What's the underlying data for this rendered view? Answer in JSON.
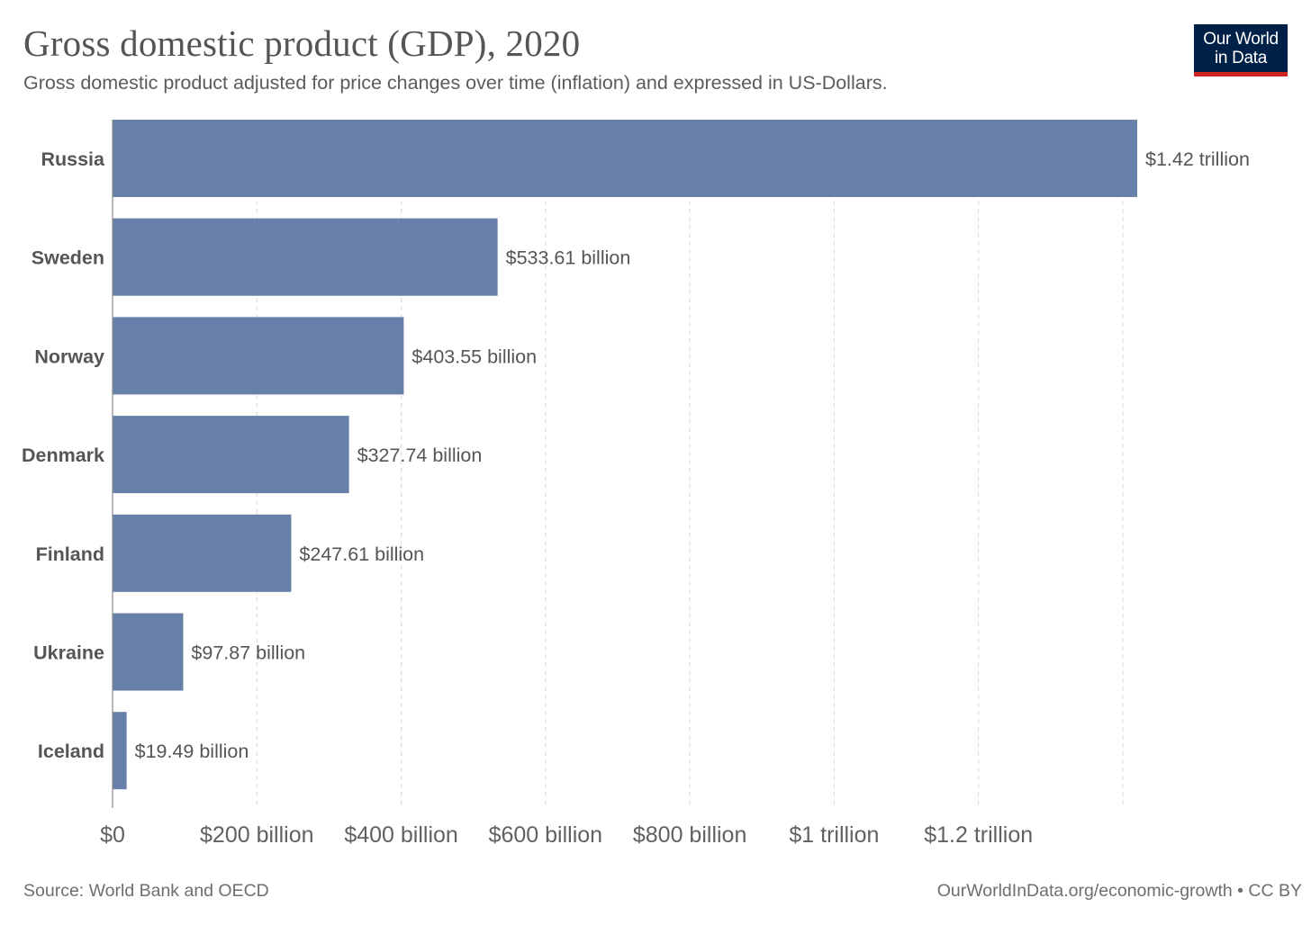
{
  "header": {
    "title": "Gross domestic product (GDP), 2020",
    "subtitle": "Gross domestic product adjusted for price changes over time (inflation) and expressed in US-Dollars."
  },
  "logo": {
    "line1": "Our World",
    "line2": "in Data"
  },
  "footer": {
    "source": "Source: World Bank and OECD",
    "url": "OurWorldInData.org/economic-growth • CC BY"
  },
  "colors": {
    "bar": "#6780aa",
    "logo_bg": "#002147",
    "logo_accent": "#ce261e"
  },
  "chart_data": {
    "type": "bar",
    "orientation": "horizontal",
    "title": "Gross domestic product (GDP), 2020",
    "subtitle": "Gross domestic product adjusted for price changes over time (inflation) and expressed in US-Dollars.",
    "xlabel": "",
    "ylabel": "",
    "grid": true,
    "xlim": [
      0,
      1420000000000
    ],
    "categories": [
      "Russia",
      "Sweden",
      "Norway",
      "Denmark",
      "Finland",
      "Ukraine",
      "Iceland"
    ],
    "values": [
      1420000000000,
      533610000000,
      403550000000,
      327740000000,
      247610000000,
      97870000000,
      19490000000
    ],
    "value_labels": [
      "$1.42 trillion",
      "$533.61 billion",
      "$403.55 billion",
      "$327.74 billion",
      "$247.61 billion",
      "$97.87 billion",
      "$19.49 billion"
    ],
    "ticks": [
      {
        "value": 0,
        "label": "$0"
      },
      {
        "value": 200000000000,
        "label": "$200 billion"
      },
      {
        "value": 400000000000,
        "label": "$400 billion"
      },
      {
        "value": 600000000000,
        "label": "$600 billion"
      },
      {
        "value": 800000000000,
        "label": "$800 billion"
      },
      {
        "value": 1000000000000,
        "label": "$1 trillion"
      },
      {
        "value": 1200000000000,
        "label": "$1.2 trillion"
      },
      {
        "value": 1400000000000,
        "label": ""
      }
    ],
    "source": "World Bank and OECD"
  }
}
